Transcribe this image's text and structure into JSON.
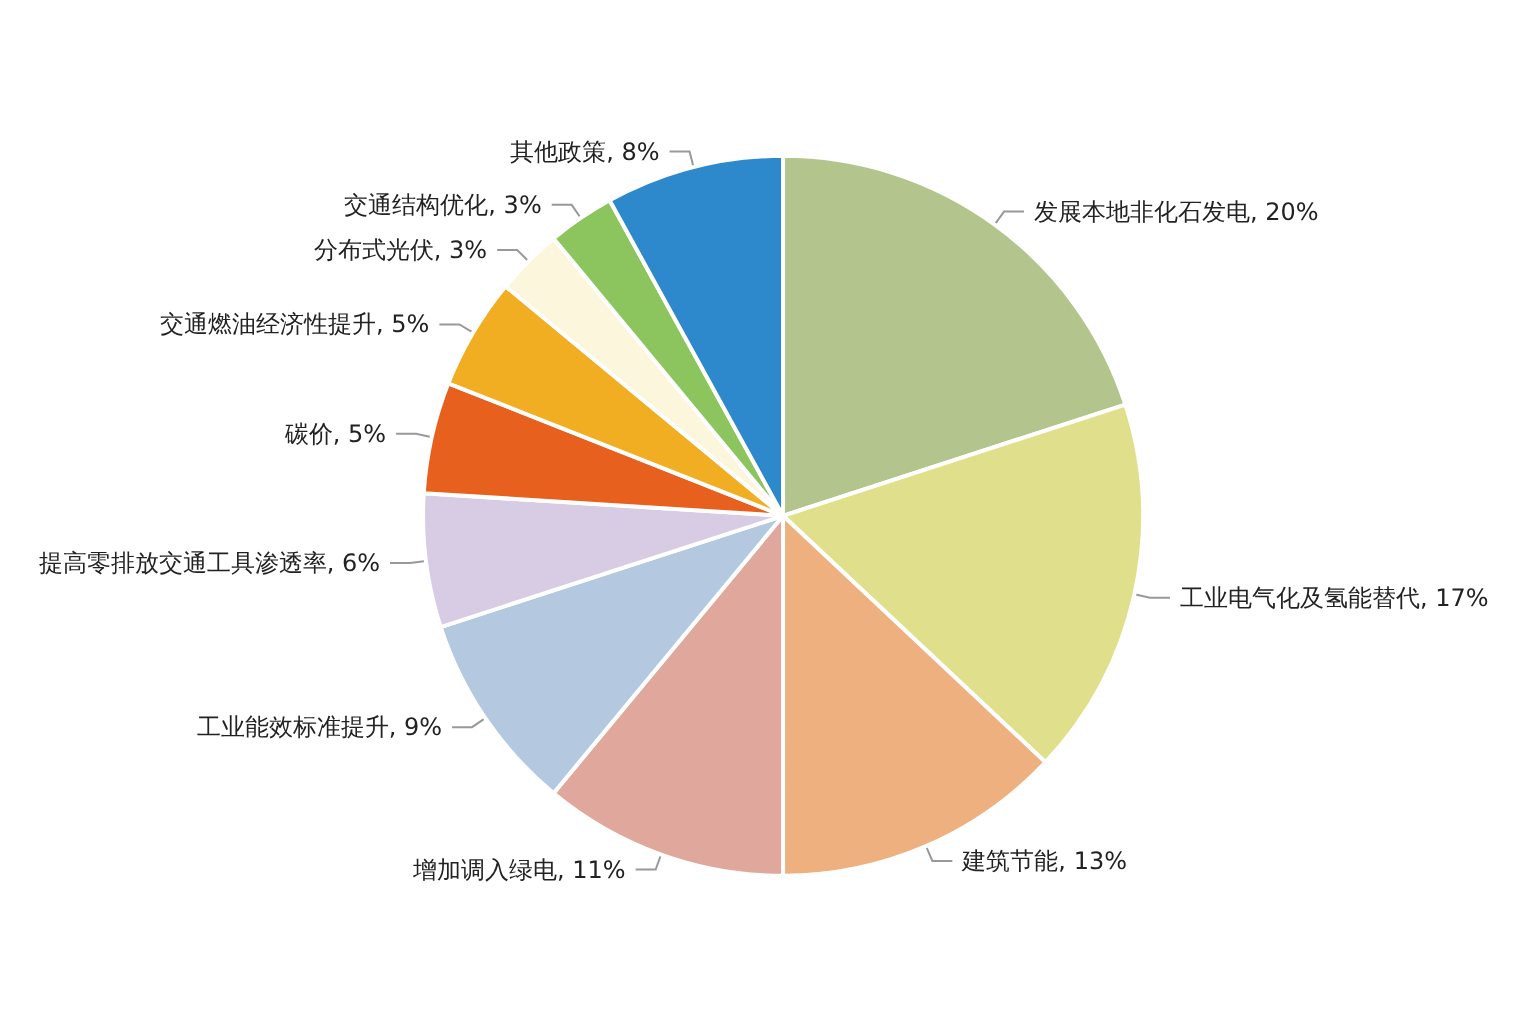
{
  "chart_data": {
    "type": "pie",
    "categories": [
      "发展本地非化石发电",
      "工业电气化及氢能替代",
      "建筑节能",
      "增加调入绿电",
      "工业能效标准提升",
      "提高零排放交通工具渗透率",
      "碳价",
      "交通燃油经济性提升",
      "分布式光伏",
      "交通结构优化",
      "其他政策"
    ],
    "value_labels": [
      "20%",
      "17%",
      "13%",
      "11%",
      "9%",
      "6%",
      "5%",
      "5%",
      "3%",
      "3%",
      "8%"
    ],
    "values": [
      20,
      17,
      13,
      11,
      9,
      6,
      5,
      5,
      3,
      3,
      8
    ],
    "colors": [
      "#b3c48c",
      "#e0e08c",
      "#edb07e",
      "#e0a89c",
      "#b4c8e0",
      "#d8cce4",
      "#e8601e",
      "#f2ae22",
      "#fcf6dc",
      "#8cc45e",
      "#2e88cc"
    ],
    "legend": false
  }
}
